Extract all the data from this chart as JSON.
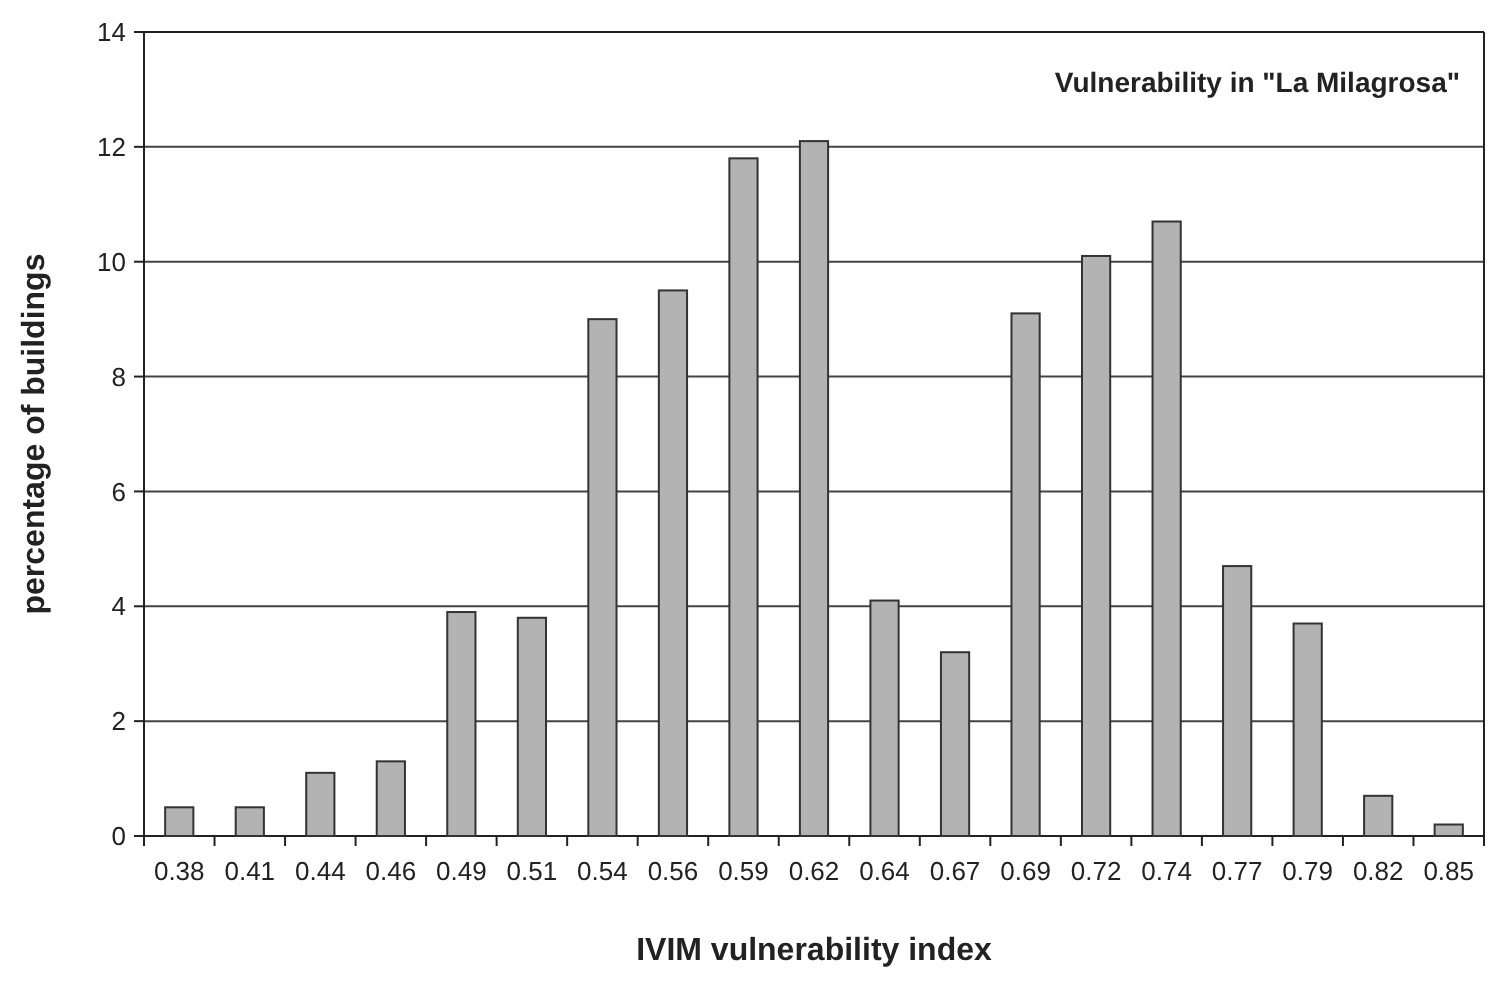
{
  "chart_data": {
    "type": "bar",
    "title": "Vulnerability in \"La Milagrosa\"",
    "xlabel": "IVIM vulnerability index",
    "ylabel": "percentage of buildings",
    "categories": [
      "0.38",
      "0.41",
      "0.44",
      "0.46",
      "0.49",
      "0.51",
      "0.54",
      "0.56",
      "0.59",
      "0.62",
      "0.64",
      "0.67",
      "0.69",
      "0.72",
      "0.74",
      "0.77",
      "0.79",
      "0.82",
      "0.85"
    ],
    "values": [
      0.5,
      0.5,
      1.1,
      1.3,
      3.9,
      3.8,
      9.0,
      9.5,
      11.8,
      12.1,
      4.1,
      3.2,
      9.1,
      10.1,
      10.7,
      4.7,
      3.7,
      0.7,
      0.2
    ],
    "color": "#b3b3b3",
    "ylim": [
      0,
      14
    ],
    "yticks": [
      0,
      2,
      4,
      6,
      8,
      10,
      12,
      14
    ],
    "grid": "y"
  }
}
